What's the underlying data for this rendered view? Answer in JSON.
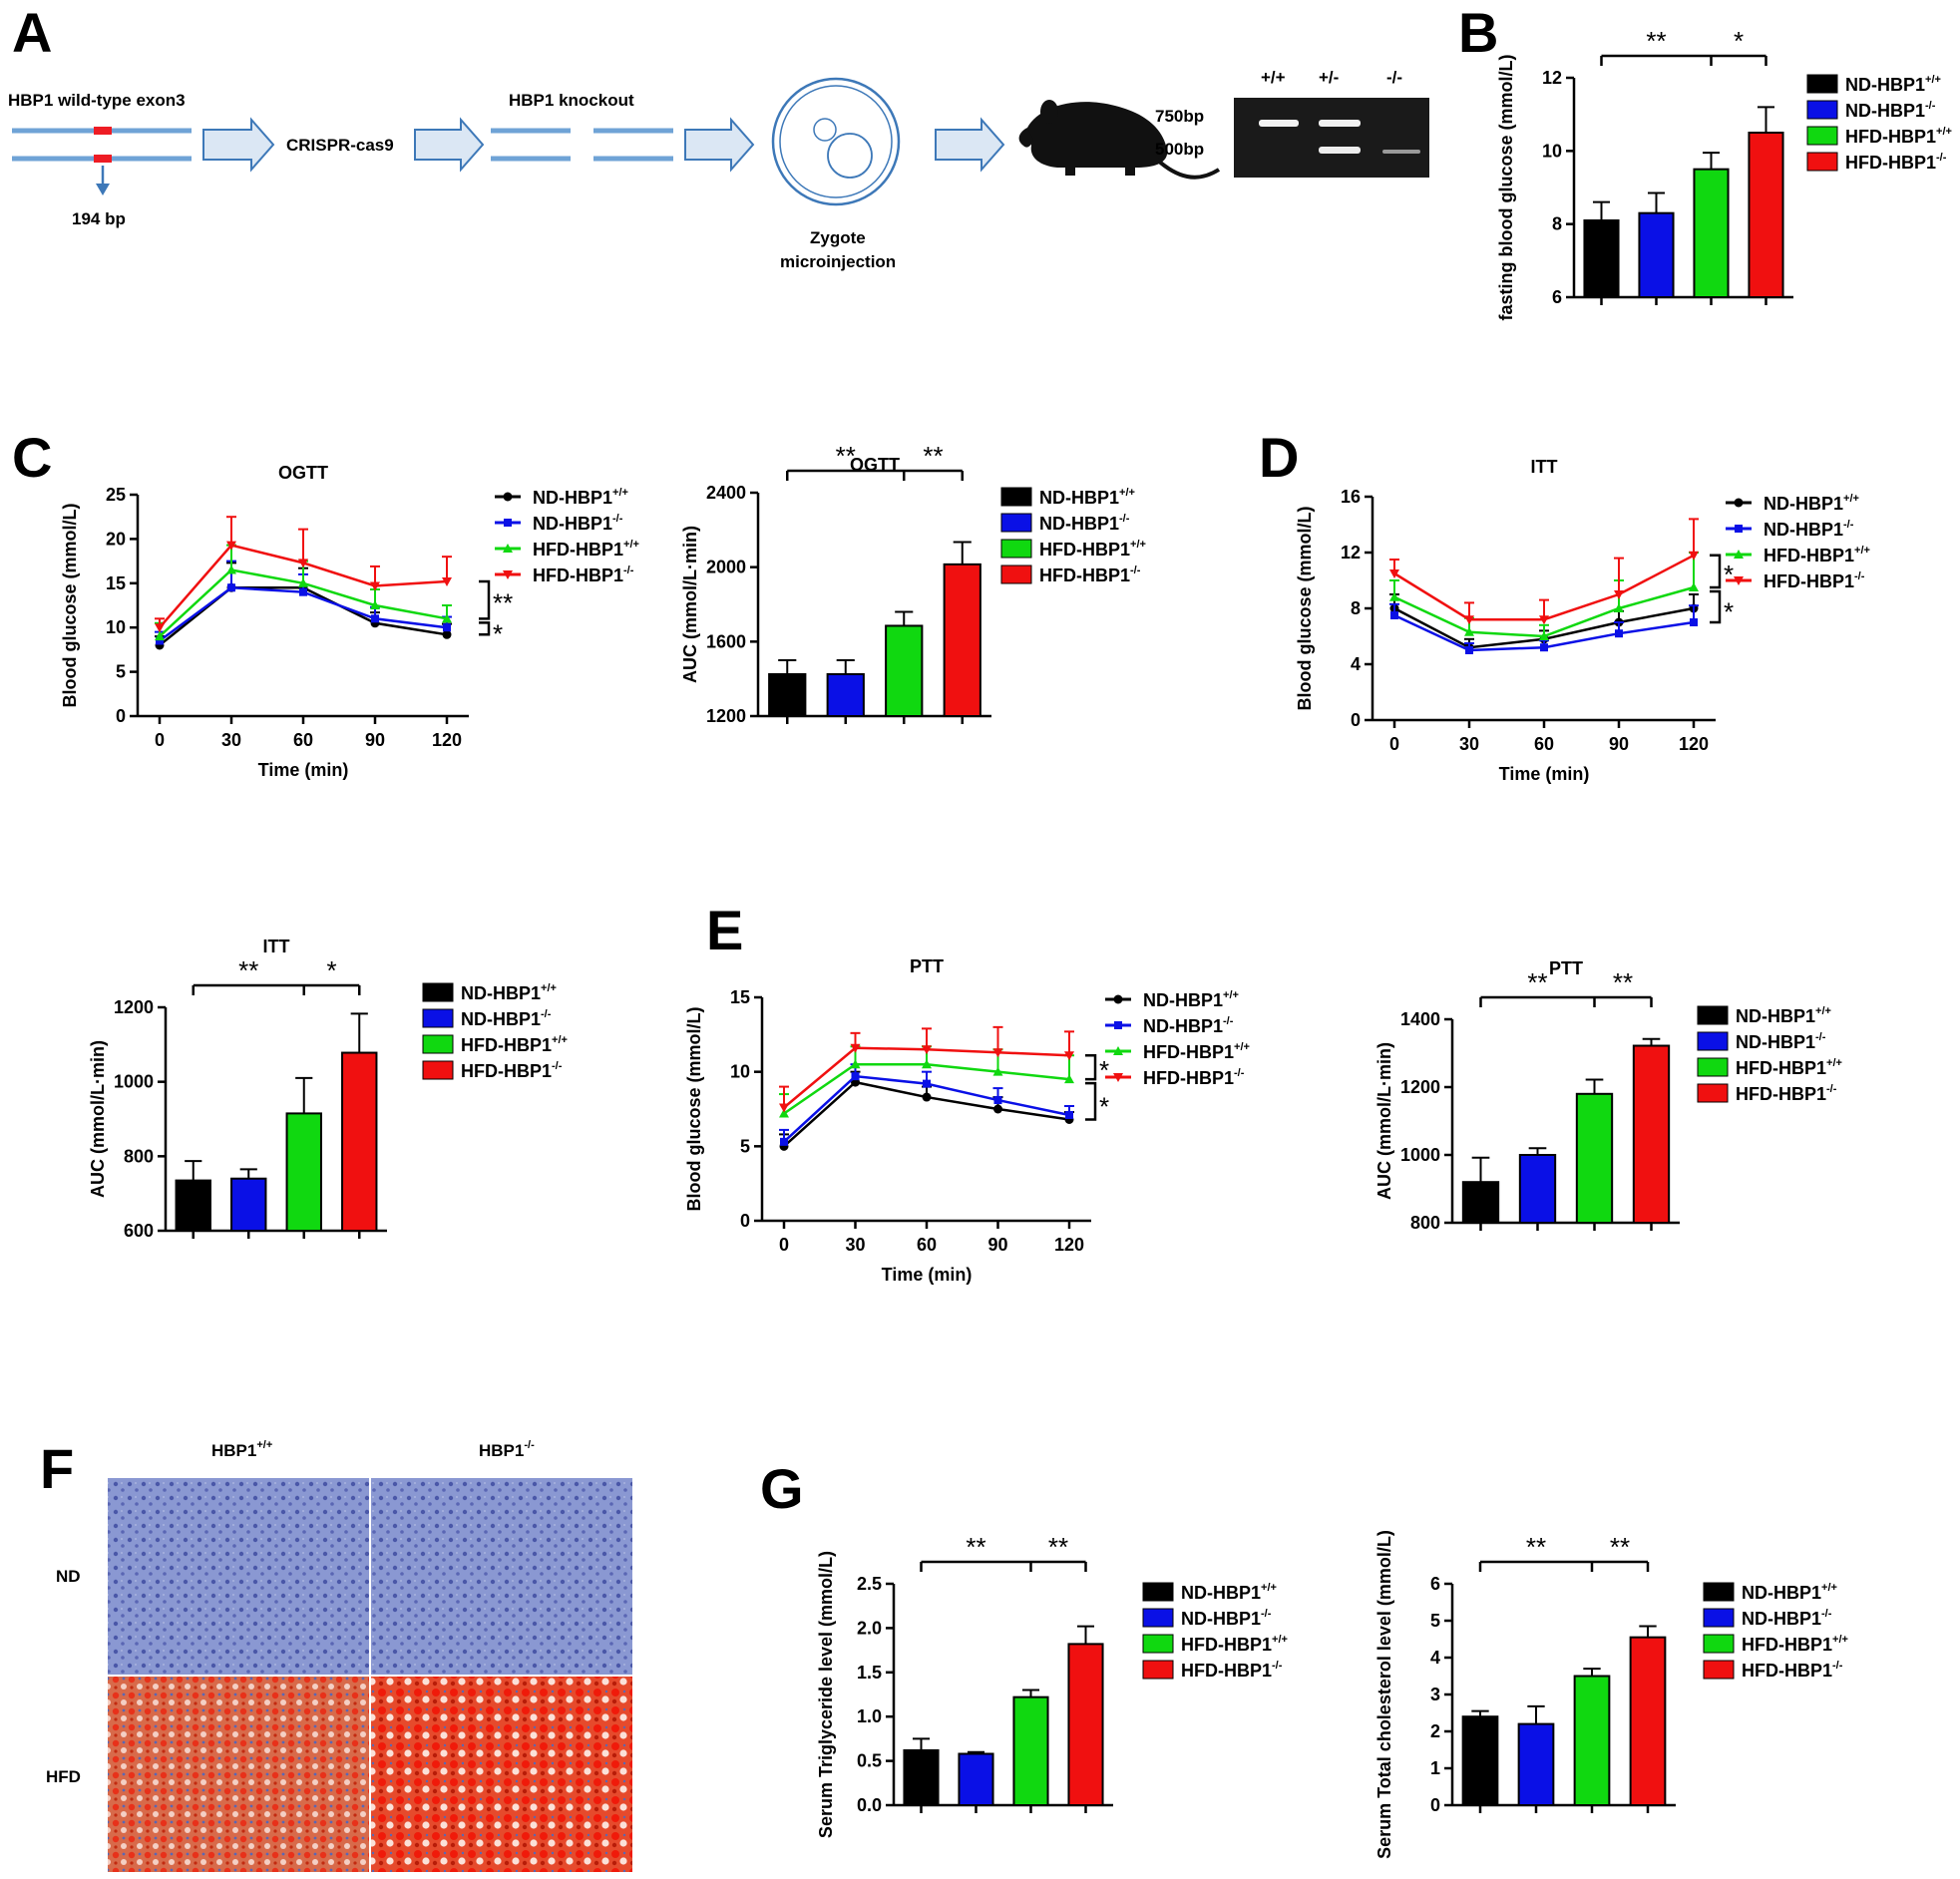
{
  "panel_letters": [
    "A",
    "B",
    "C",
    "D",
    "E",
    "F",
    "G"
  ],
  "group_names": [
    "ND-HBP1",
    "ND-HBP1",
    "HFD-HBP1",
    "HFD-HBP1"
  ],
  "group_sups": [
    "+/+",
    "-/-",
    "+/+",
    "-/-"
  ],
  "colors": {
    "ND_wt": "#000000",
    "ND_ko": "#0a10e6",
    "HFD_wt": "#10d810",
    "HFD_ko": "#f01010",
    "arrow_fill": "#dbe7f4",
    "arrow_stroke": "#3d78b8",
    "gene": "#6fa3d6",
    "exon": "#ee1c24"
  },
  "schematic": {
    "wildtype_label": "HBP1 wild-type exon3",
    "exon_size": "194 bp",
    "crispr_label": "CRISPR-cas9",
    "knockout_label": "HBP1 knockout",
    "zygote_label_1": "Zygote",
    "zygote_label_2": "microinjection",
    "marker_750": "750bp",
    "marker_500": "500bp",
    "genotypes": [
      "+/+",
      "+/-",
      "-/-"
    ],
    "icons": [
      "arrow-icon",
      "mouse-icon",
      "zygote-icon",
      "gel-image"
    ]
  },
  "histology": {
    "col_labels": [
      "HBP1",
      "HBP1"
    ],
    "col_sups": [
      "+/+",
      "-/-"
    ],
    "row_labels": [
      "ND",
      "HFD"
    ]
  },
  "chart_data": [
    {
      "id": "B",
      "type": "bar",
      "title": "",
      "ylabel": "fasting blood glucose (mmol/L)",
      "ylim": [
        6,
        12
      ],
      "yticks": [
        6,
        8,
        10,
        12
      ],
      "categories": [
        "ND-HBP1+/+",
        "ND-HBP1-/-",
        "HFD-HBP1+/+",
        "HFD-HBP1-/-"
      ],
      "values": [
        8.1,
        8.3,
        9.5,
        10.5
      ],
      "errors": [
        0.5,
        0.55,
        0.45,
        0.7
      ],
      "significance": [
        {
          "from": 0,
          "to": 2,
          "label": "**"
        },
        {
          "from": 2,
          "to": 3,
          "label": "*"
        }
      ]
    },
    {
      "id": "C-OGTT",
      "type": "line",
      "title": "OGTT",
      "xlabel": "Time (min)",
      "ylabel": "Blood glucose (mmol/L)",
      "x": [
        0,
        30,
        60,
        90,
        120
      ],
      "ylim": [
        0,
        25
      ],
      "yticks": [
        0,
        5,
        10,
        15,
        20,
        25
      ],
      "series": [
        {
          "name": "ND-HBP1+/+",
          "values": [
            8,
            14.5,
            14.5,
            10.5,
            9.2
          ],
          "errors": [
            1,
            2.8,
            2.2,
            1.2,
            1.2
          ]
        },
        {
          "name": "ND-HBP1-/-",
          "values": [
            8.5,
            14.5,
            14,
            11,
            10
          ],
          "errors": [
            1,
            3,
            2,
            1.3,
            1.2
          ]
        },
        {
          "name": "HFD-HBP1+/+",
          "values": [
            9,
            16.5,
            15,
            12.5,
            11
          ],
          "errors": [
            1.5,
            2.8,
            2.5,
            1.8,
            1.5
          ]
        },
        {
          "name": "HFD-HBP1-/-",
          "values": [
            10,
            19.3,
            17.3,
            14.7,
            15.2
          ],
          "errors": [
            1,
            3.2,
            3.8,
            2.2,
            2.8
          ]
        }
      ],
      "significance": [
        {
          "label": "**"
        },
        {
          "label": "*"
        }
      ]
    },
    {
      "id": "C-AUC",
      "type": "bar",
      "title": "OGTT",
      "ylabel": "AUC (mmol/L·min)",
      "ylim": [
        1200,
        2400
      ],
      "yticks": [
        1200,
        1600,
        2000,
        2400
      ],
      "categories": [
        "ND-HBP1+/+",
        "ND-HBP1-/-",
        "HFD-HBP1+/+",
        "HFD-HBP1-/-"
      ],
      "values": [
        1425,
        1425,
        1685,
        2015
      ],
      "errors": [
        75,
        75,
        75,
        120
      ],
      "significance": [
        {
          "from": 0,
          "to": 2,
          "label": "**"
        },
        {
          "from": 2,
          "to": 3,
          "label": "**"
        }
      ]
    },
    {
      "id": "D-ITT",
      "type": "line",
      "title": "ITT",
      "xlabel": "Time (min)",
      "ylabel": "Blood glucose (mmol/L)",
      "x": [
        0,
        30,
        60,
        90,
        120
      ],
      "ylim": [
        0,
        16
      ],
      "yticks": [
        0,
        4,
        8,
        12,
        16
      ],
      "series": [
        {
          "name": "ND-HBP1+/+",
          "values": [
            8,
            5.2,
            5.8,
            7,
            8
          ],
          "errors": [
            1,
            0.6,
            0.6,
            0.8,
            1
          ]
        },
        {
          "name": "ND-HBP1-/-",
          "values": [
            7.5,
            5,
            5.2,
            6.2,
            7
          ],
          "errors": [
            0.8,
            0.5,
            0.5,
            0.8,
            1.2
          ]
        },
        {
          "name": "HFD-HBP1+/+",
          "values": [
            8.8,
            6.3,
            6,
            8,
            9.5
          ],
          "errors": [
            1.2,
            1,
            0.8,
            2,
            2.5
          ]
        },
        {
          "name": "HFD-HBP1-/-",
          "values": [
            10.5,
            7.2,
            7.2,
            9,
            11.8
          ],
          "errors": [
            1,
            1.2,
            1.4,
            2.6,
            2.6
          ]
        }
      ],
      "significance": [
        {
          "label": "*"
        },
        {
          "label": "*"
        }
      ]
    },
    {
      "id": "D-AUC",
      "type": "bar",
      "title": "ITT",
      "ylabel": "AUC (mmol/L·min)",
      "ylim": [
        600,
        1200
      ],
      "yticks": [
        600,
        800,
        1000,
        1200
      ],
      "categories": [
        "ND-HBP1+/+",
        "ND-HBP1-/-",
        "HFD-HBP1+/+",
        "HFD-HBP1-/-"
      ],
      "values": [
        735,
        740,
        915,
        1078
      ],
      "errors": [
        52,
        25,
        95,
        105
      ],
      "significance": [
        {
          "from": 0,
          "to": 2,
          "label": "**"
        },
        {
          "from": 2,
          "to": 3,
          "label": "*"
        }
      ]
    },
    {
      "id": "E-PTT",
      "type": "line",
      "title": "PTT",
      "xlabel": "Time (min)",
      "ylabel": "Blood glucose (mmol/L)",
      "x": [
        0,
        30,
        60,
        90,
        120
      ],
      "ylim": [
        0,
        15
      ],
      "yticks": [
        0,
        5,
        10,
        15
      ],
      "series": [
        {
          "name": "ND-HBP1+/+",
          "values": [
            5,
            9.3,
            8.3,
            7.5,
            6.8
          ],
          "errors": [
            0.8,
            0.7,
            0.7,
            0.8,
            0.5
          ]
        },
        {
          "name": "ND-HBP1-/-",
          "values": [
            5.3,
            9.7,
            9.2,
            8.1,
            7.1
          ],
          "errors": [
            0.8,
            0.8,
            0.8,
            0.8,
            0.6
          ]
        },
        {
          "name": "HFD-HBP1+/+",
          "values": [
            7.2,
            10.5,
            10.5,
            10,
            9.5
          ],
          "errors": [
            1.3,
            1.2,
            1.2,
            1.5,
            1.6
          ]
        },
        {
          "name": "HFD-HBP1-/-",
          "values": [
            7.6,
            11.6,
            11.5,
            11.3,
            11.1
          ],
          "errors": [
            1.4,
            1,
            1.4,
            1.7,
            1.6
          ]
        }
      ],
      "significance": [
        {
          "label": "*"
        },
        {
          "label": "*"
        }
      ]
    },
    {
      "id": "E-AUC",
      "type": "bar",
      "title": "PTT",
      "ylabel": "AUC (mmol/L·min)",
      "ylim": [
        800,
        1400
      ],
      "yticks": [
        800,
        1000,
        1200,
        1400
      ],
      "categories": [
        "ND-HBP1+/+",
        "ND-HBP1-/-",
        "HFD-HBP1+/+",
        "HFD-HBP1-/-"
      ],
      "values": [
        920,
        1000,
        1180,
        1322
      ],
      "errors": [
        72,
        20,
        42,
        20
      ],
      "significance": [
        {
          "from": 0,
          "to": 2,
          "label": "**"
        },
        {
          "from": 2,
          "to": 3,
          "label": "**"
        }
      ]
    },
    {
      "id": "G-TG",
      "type": "bar",
      "title": "",
      "ylabel": "Serum Triglyceride level (mmol/L)",
      "ylim": [
        0,
        2.5
      ],
      "yticks": [
        0,
        0.5,
        1.0,
        1.5,
        2.0,
        2.5
      ],
      "ytick_labels": [
        "0.0",
        "0.5",
        "1.0",
        "1.5",
        "2.0",
        "2.5"
      ],
      "categories": [
        "ND-HBP1+/+",
        "ND-HBP1-/-",
        "HFD-HBP1+/+",
        "HFD-HBP1-/-"
      ],
      "values": [
        0.62,
        0.58,
        1.22,
        1.82
      ],
      "errors": [
        0.13,
        0.02,
        0.08,
        0.2
      ],
      "significance": [
        {
          "from": 0,
          "to": 2,
          "label": "**"
        },
        {
          "from": 2,
          "to": 3,
          "label": "**"
        }
      ]
    },
    {
      "id": "G-TC",
      "type": "bar",
      "title": "",
      "ylabel": "Serum Total cholesterol level (mmol/L)",
      "ylim": [
        0,
        6
      ],
      "yticks": [
        0,
        1,
        2,
        3,
        4,
        5,
        6
      ],
      "categories": [
        "ND-HBP1+/+",
        "ND-HBP1-/-",
        "HFD-HBP1+/+",
        "HFD-HBP1-/-"
      ],
      "values": [
        2.4,
        2.2,
        3.5,
        4.55
      ],
      "errors": [
        0.15,
        0.48,
        0.2,
        0.3
      ],
      "significance": [
        {
          "from": 0,
          "to": 2,
          "label": "**"
        },
        {
          "from": 2,
          "to": 3,
          "label": "**"
        }
      ]
    }
  ]
}
